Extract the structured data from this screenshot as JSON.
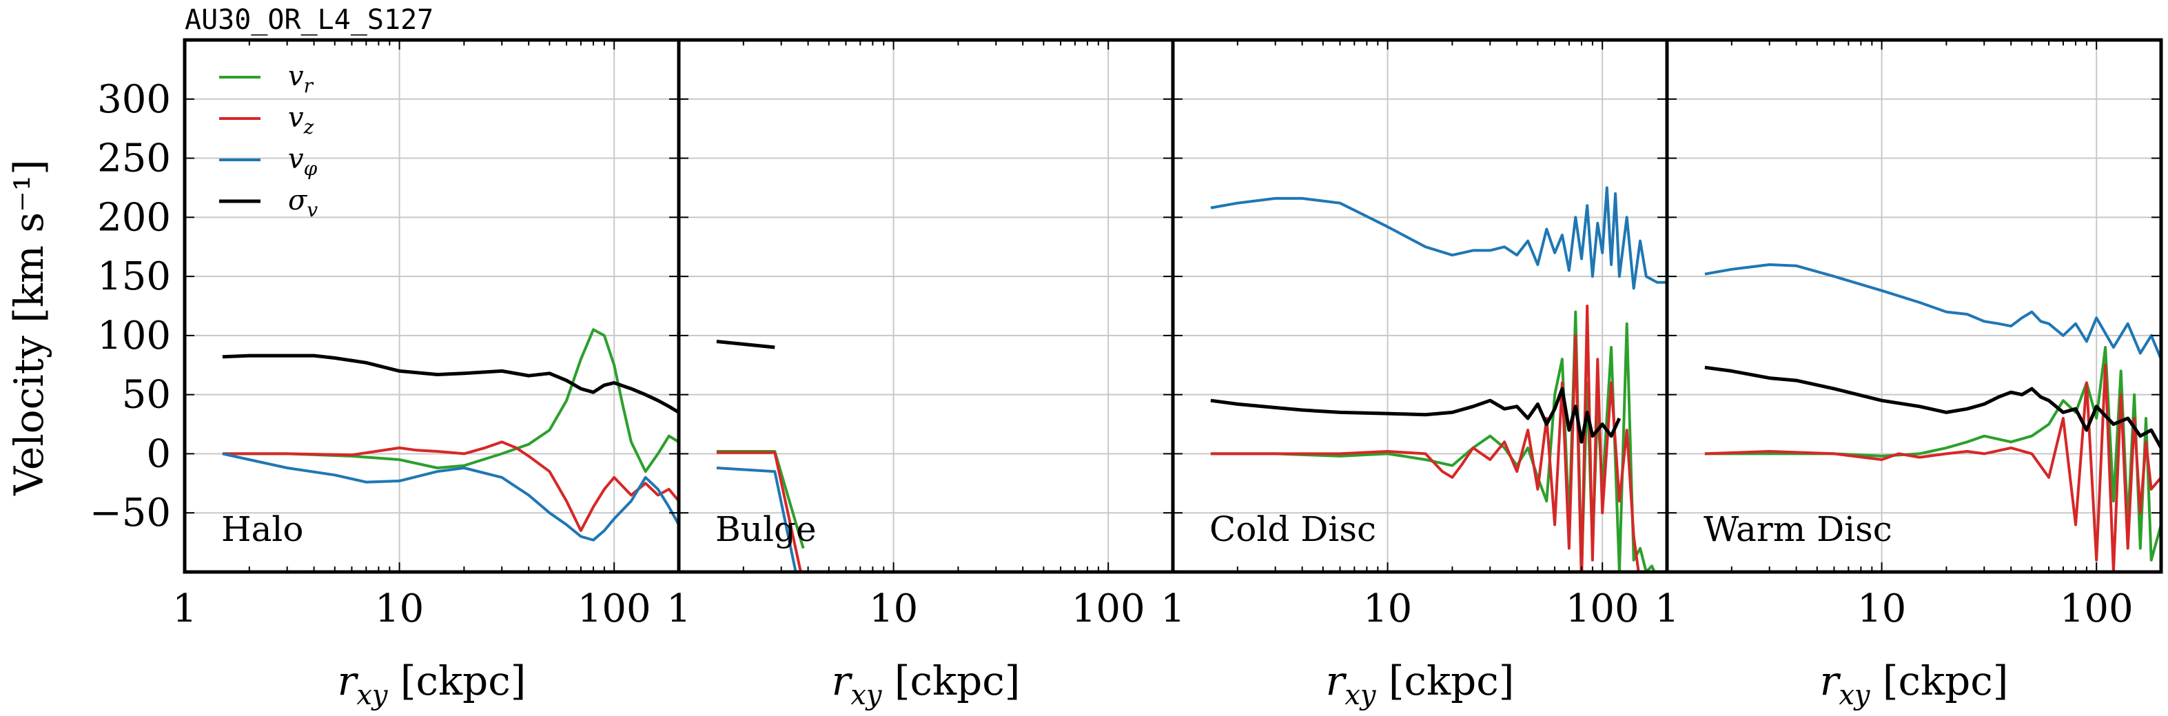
{
  "figure": {
    "title": "AU30_OR_L4_S127",
    "ylabel": "Velocity [km s⁻¹]",
    "xlabel": "r_xy [ckpc]"
  },
  "legend": [
    {
      "label": "v_r",
      "color": "#2ca02c"
    },
    {
      "label": "v_z",
      "color": "#d62728"
    },
    {
      "label": "v_φ",
      "color": "#1f77b4"
    },
    {
      "label": "σ_v",
      "color": "#000000"
    }
  ],
  "chart_data": [
    {
      "type": "line",
      "panel_label": "Halo",
      "xscale": "log",
      "xlim": [
        1,
        200
      ],
      "ylim": [
        -100,
        350
      ],
      "xticks": [
        "1",
        "10",
        "100"
      ],
      "yticks": [
        "300",
        "250",
        "200",
        "150",
        "100",
        "50",
        "0",
        "−50"
      ],
      "grid": true,
      "legend_position": "top-left",
      "series": [
        {
          "name": "v_r",
          "color": "#2ca02c",
          "x": [
            1.5,
            3,
            6,
            10,
            15,
            20,
            30,
            40,
            50,
            60,
            70,
            80,
            90,
            100,
            110,
            120,
            140,
            160,
            180,
            200
          ],
          "y": [
            0,
            0,
            -2,
            -5,
            -12,
            -10,
            0,
            8,
            20,
            45,
            80,
            105,
            100,
            75,
            40,
            10,
            -15,
            0,
            15,
            10
          ]
        },
        {
          "name": "v_z",
          "color": "#d62728",
          "x": [
            1.5,
            3,
            6,
            10,
            12,
            15,
            20,
            25,
            30,
            35,
            40,
            50,
            60,
            70,
            80,
            90,
            100,
            120,
            140,
            160,
            180,
            200
          ],
          "y": [
            0,
            0,
            -1,
            5,
            3,
            2,
            0,
            5,
            10,
            5,
            -2,
            -15,
            -40,
            -65,
            -45,
            -30,
            -20,
            -35,
            -25,
            -35,
            -30,
            -40
          ]
        },
        {
          "name": "v_φ",
          "color": "#1f77b4",
          "x": [
            1.5,
            2,
            3,
            5,
            7,
            10,
            15,
            20,
            30,
            40,
            50,
            60,
            70,
            80,
            90,
            100,
            120,
            140,
            160,
            180,
            200
          ],
          "y": [
            0,
            -5,
            -12,
            -18,
            -24,
            -23,
            -15,
            -12,
            -20,
            -35,
            -50,
            -60,
            -70,
            -73,
            -65,
            -55,
            -40,
            -20,
            -30,
            -45,
            -60
          ]
        },
        {
          "name": "σ_v",
          "color": "#000000",
          "x": [
            1.5,
            2,
            3,
            4,
            5,
            7,
            10,
            15,
            20,
            30,
            40,
            50,
            60,
            70,
            80,
            90,
            100,
            120,
            140,
            160,
            180,
            200
          ],
          "y": [
            82,
            83,
            83,
            83,
            81,
            77,
            70,
            67,
            68,
            70,
            66,
            68,
            62,
            55,
            52,
            58,
            60,
            55,
            50,
            45,
            40,
            35
          ]
        }
      ]
    },
    {
      "type": "line",
      "panel_label": "Bulge",
      "xscale": "log",
      "xlim": [
        1,
        200
      ],
      "ylim": [
        -100,
        350
      ],
      "xticks": [
        "1",
        "10",
        "100"
      ],
      "grid": true,
      "series": [
        {
          "name": "v_r",
          "color": "#2ca02c",
          "x": [
            1.5,
            2.8,
            3.8
          ],
          "y": [
            2,
            2,
            -80
          ]
        },
        {
          "name": "v_z",
          "color": "#d62728",
          "x": [
            1.5,
            2.8,
            3.8
          ],
          "y": [
            1,
            1,
            -110
          ]
        },
        {
          "name": "v_φ",
          "color": "#1f77b4",
          "x": [
            1.5,
            2.8,
            3.6
          ],
          "y": [
            -12,
            -15,
            -110
          ]
        },
        {
          "name": "σ_v",
          "color": "#000000",
          "x": [
            1.5,
            2.8
          ],
          "y": [
            95,
            90
          ]
        }
      ]
    },
    {
      "type": "line",
      "panel_label": "Cold Disc",
      "xscale": "log",
      "xlim": [
        1,
        200
      ],
      "ylim": [
        -100,
        350
      ],
      "xticks": [
        "1",
        "10",
        "100"
      ],
      "grid": true,
      "series": [
        {
          "name": "v_r",
          "color": "#2ca02c",
          "x": [
            1.5,
            3,
            6,
            10,
            15,
            20,
            25,
            30,
            35,
            40,
            45,
            50,
            55,
            60,
            65,
            70,
            75,
            80,
            85,
            90,
            95,
            100,
            110,
            120,
            130,
            140,
            150,
            160,
            170,
            180,
            200
          ],
          "y": [
            0,
            0,
            -2,
            0,
            -5,
            -10,
            5,
            15,
            5,
            -10,
            5,
            -20,
            -40,
            50,
            80,
            -60,
            120,
            -100,
            60,
            -80,
            40,
            -30,
            90,
            -100,
            110,
            -90,
            -80,
            -100,
            -95,
            -105,
            -100
          ]
        },
        {
          "name": "v_z",
          "color": "#d62728",
          "x": [
            1.5,
            3,
            6,
            10,
            15,
            18,
            20,
            22,
            25,
            30,
            35,
            40,
            45,
            50,
            55,
            60,
            65,
            70,
            75,
            80,
            85,
            90,
            95,
            100,
            110,
            120,
            130,
            140,
            150
          ],
          "y": [
            0,
            0,
            0,
            2,
            0,
            -15,
            -20,
            -10,
            5,
            -5,
            10,
            -15,
            20,
            -30,
            30,
            -60,
            60,
            -80,
            100,
            -110,
            125,
            -90,
            80,
            -50,
            60,
            -40,
            20,
            -70,
            -110
          ]
        },
        {
          "name": "v_φ",
          "color": "#1f77b4",
          "x": [
            1.5,
            2,
            3,
            4,
            6,
            10,
            15,
            20,
            25,
            30,
            35,
            40,
            45,
            50,
            55,
            60,
            65,
            70,
            75,
            80,
            85,
            90,
            95,
            100,
            105,
            110,
            115,
            120,
            130,
            140,
            150,
            160,
            180,
            200
          ],
          "y": [
            208,
            212,
            216,
            216,
            212,
            192,
            175,
            168,
            172,
            172,
            175,
            168,
            180,
            160,
            190,
            170,
            185,
            155,
            200,
            165,
            210,
            150,
            195,
            170,
            225,
            160,
            220,
            150,
            200,
            140,
            180,
            150,
            145,
            145
          ]
        },
        {
          "name": "σ_v",
          "color": "#000000",
          "x": [
            1.5,
            2,
            3,
            4,
            6,
            10,
            15,
            20,
            25,
            30,
            35,
            40,
            45,
            50,
            55,
            60,
            65,
            70,
            75,
            80,
            85,
            90,
            95,
            100,
            110,
            120
          ],
          "y": [
            45,
            42,
            39,
            37,
            35,
            34,
            33,
            35,
            40,
            45,
            38,
            40,
            30,
            42,
            25,
            38,
            55,
            20,
            40,
            10,
            35,
            15,
            20,
            25,
            15,
            30
          ]
        }
      ]
    },
    {
      "type": "line",
      "panel_label": "Warm Disc",
      "xscale": "log",
      "xlim": [
        1,
        200
      ],
      "ylim": [
        -100,
        350
      ],
      "xticks": [
        "1",
        "10",
        "100"
      ],
      "grid": true,
      "series": [
        {
          "name": "v_r",
          "color": "#2ca02c",
          "x": [
            1.5,
            3,
            6,
            10,
            15,
            20,
            25,
            30,
            40,
            50,
            60,
            70,
            80,
            90,
            100,
            110,
            120,
            130,
            140,
            150,
            160,
            170,
            180,
            200
          ],
          "y": [
            0,
            0,
            0,
            -2,
            0,
            5,
            10,
            15,
            10,
            15,
            25,
            45,
            35,
            60,
            30,
            90,
            -40,
            70,
            -60,
            50,
            -80,
            30,
            -90,
            -60
          ]
        },
        {
          "name": "v_z",
          "color": "#d62728",
          "x": [
            1.5,
            3,
            6,
            10,
            12,
            15,
            20,
            25,
            30,
            40,
            50,
            60,
            70,
            80,
            90,
            100,
            110,
            120,
            130,
            140,
            150,
            160,
            170,
            180,
            200
          ],
          "y": [
            0,
            2,
            0,
            -5,
            0,
            -3,
            0,
            2,
            0,
            5,
            0,
            -20,
            30,
            -60,
            60,
            -90,
            75,
            -100,
            50,
            -80,
            30,
            -50,
            10,
            -30,
            -20
          ]
        },
        {
          "name": "v_φ",
          "color": "#1f77b4",
          "x": [
            1.5,
            2,
            3,
            4,
            6,
            10,
            15,
            20,
            25,
            30,
            35,
            40,
            45,
            50,
            55,
            60,
            70,
            80,
            90,
            100,
            120,
            140,
            160,
            180,
            200
          ],
          "y": [
            152,
            156,
            160,
            159,
            150,
            138,
            128,
            120,
            118,
            112,
            110,
            108,
            115,
            120,
            112,
            110,
            100,
            110,
            95,
            115,
            90,
            110,
            85,
            100,
            80
          ]
        },
        {
          "name": "σ_v",
          "color": "#000000",
          "x": [
            1.5,
            2,
            3,
            4,
            6,
            10,
            15,
            20,
            25,
            30,
            35,
            40,
            45,
            50,
            55,
            60,
            70,
            80,
            90,
            100,
            120,
            140,
            160,
            180,
            200
          ],
          "y": [
            73,
            70,
            64,
            62,
            55,
            45,
            40,
            35,
            38,
            42,
            48,
            52,
            50,
            55,
            48,
            45,
            35,
            38,
            20,
            40,
            25,
            30,
            15,
            20,
            5
          ]
        }
      ]
    }
  ]
}
